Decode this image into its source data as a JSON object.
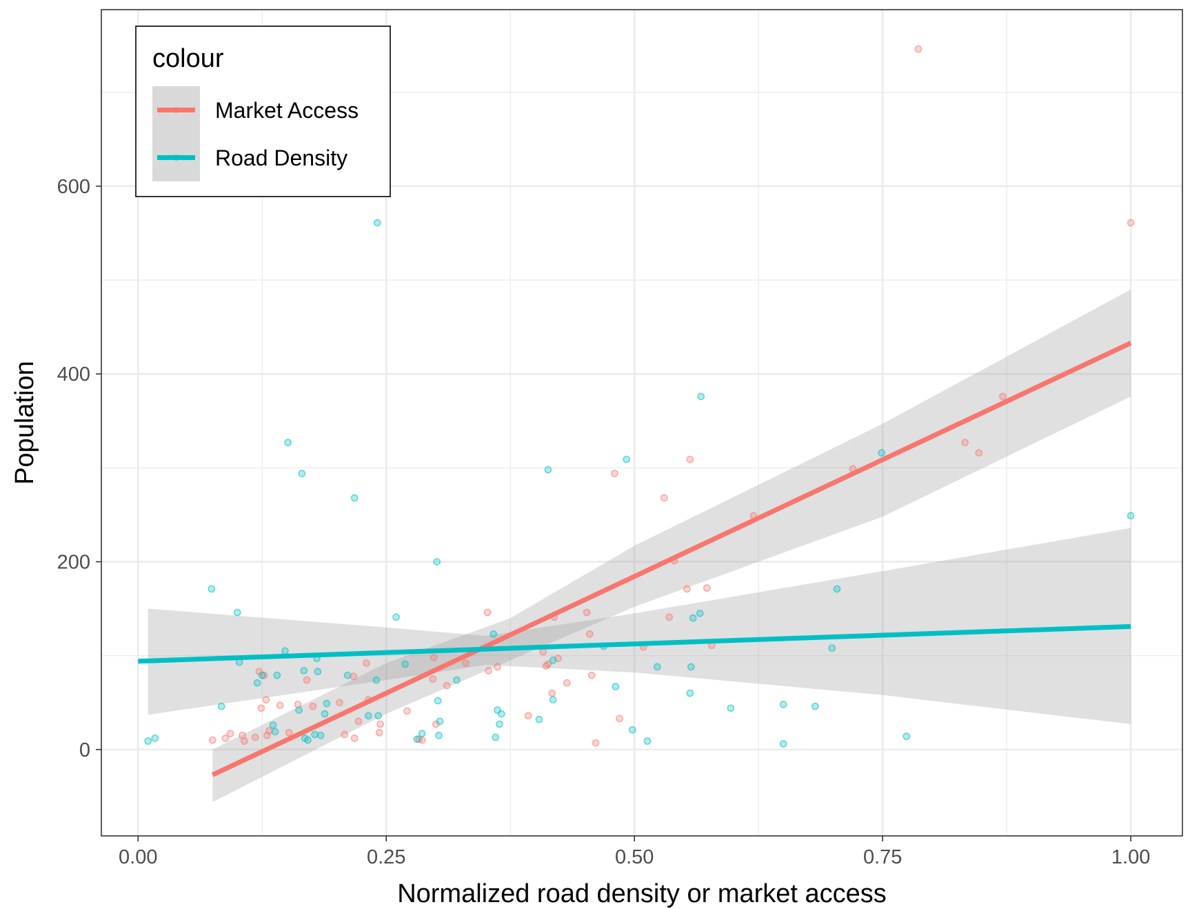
{
  "chart_data": {
    "type": "scatter",
    "title": "",
    "xlabel": "Normalized road density or market access",
    "ylabel": "Population",
    "xlim": [
      -0.037,
      1.052
    ],
    "ylim": [
      -92,
      788
    ],
    "x_ticks": [
      0,
      0.25,
      0.5,
      0.75,
      1
    ],
    "x_tick_labels": [
      "0.00",
      "0.25",
      "0.50",
      "0.75",
      "1.00"
    ],
    "y_ticks": [
      0,
      200,
      400,
      600
    ],
    "y_tick_labels": [
      "0",
      "200",
      "400",
      "600"
    ],
    "grid": true,
    "legend": {
      "title": "colour",
      "position": "top-left"
    },
    "series": [
      {
        "name": "Market Access",
        "color": "#F8766D",
        "points": [
          [
            0.075,
            10
          ],
          [
            0.088,
            12
          ],
          [
            0.093,
            17
          ],
          [
            0.105,
            15
          ],
          [
            0.107,
            9
          ],
          [
            0.118,
            13
          ],
          [
            0.122,
            83
          ],
          [
            0.124,
            44
          ],
          [
            0.127,
            79
          ],
          [
            0.129,
            53
          ],
          [
            0.13,
            15
          ],
          [
            0.132,
            20
          ],
          [
            0.143,
            47
          ],
          [
            0.152,
            18
          ],
          [
            0.161,
            48
          ],
          [
            0.17,
            74
          ],
          [
            0.176,
            46
          ],
          [
            0.203,
            50
          ],
          [
            0.208,
            16
          ],
          [
            0.217,
            78
          ],
          [
            0.218,
            12
          ],
          [
            0.222,
            30
          ],
          [
            0.23,
            92
          ],
          [
            0.232,
            53
          ],
          [
            0.243,
            18
          ],
          [
            0.244,
            27
          ],
          [
            0.271,
            41
          ],
          [
            0.283,
            11
          ],
          [
            0.286,
            10
          ],
          [
            0.297,
            75
          ],
          [
            0.298,
            98
          ],
          [
            0.3,
            27
          ],
          [
            0.311,
            68
          ],
          [
            0.33,
            92
          ],
          [
            0.352,
            146
          ],
          [
            0.353,
            84
          ],
          [
            0.362,
            88
          ],
          [
            0.393,
            36
          ],
          [
            0.408,
            104
          ],
          [
            0.411,
            89
          ],
          [
            0.413,
            91
          ],
          [
            0.417,
            60
          ],
          [
            0.419,
            141
          ],
          [
            0.423,
            97
          ],
          [
            0.432,
            71
          ],
          [
            0.452,
            146
          ],
          [
            0.455,
            123
          ],
          [
            0.457,
            79
          ],
          [
            0.461,
            7
          ],
          [
            0.48,
            294
          ],
          [
            0.485,
            33
          ],
          [
            0.509,
            109
          ],
          [
            0.53,
            268
          ],
          [
            0.535,
            141
          ],
          [
            0.54,
            201
          ],
          [
            0.553,
            171
          ],
          [
            0.556,
            309
          ],
          [
            0.573,
            172
          ],
          [
            0.578,
            111
          ],
          [
            0.62,
            249
          ],
          [
            0.72,
            299
          ],
          [
            0.786,
            746
          ],
          [
            0.833,
            327
          ],
          [
            0.847,
            316
          ],
          [
            0.871,
            376
          ],
          [
            1.0,
            561
          ]
        ],
        "fit_line": [
          [
            0.075,
            -27
          ],
          [
            1.0,
            433
          ]
        ],
        "ci_band": [
          [
            0.075,
            0,
            -56
          ],
          [
            0.25,
            92,
            38
          ],
          [
            0.375,
            140,
            95
          ],
          [
            0.5,
            217,
            152
          ],
          [
            0.75,
            347,
            248
          ],
          [
            1.0,
            490,
            376
          ]
        ]
      },
      {
        "name": "Road Density",
        "color": "#00BFC4",
        "points": [
          [
            0.01,
            9
          ],
          [
            0.017,
            12
          ],
          [
            0.074,
            171
          ],
          [
            0.1,
            146
          ],
          [
            0.102,
            93
          ],
          [
            0.084,
            46
          ],
          [
            0.12,
            71
          ],
          [
            0.125,
            79
          ],
          [
            0.136,
            26
          ],
          [
            0.138,
            19
          ],
          [
            0.14,
            79
          ],
          [
            0.148,
            105
          ],
          [
            0.151,
            327
          ],
          [
            0.162,
            42
          ],
          [
            0.165,
            294
          ],
          [
            0.167,
            84
          ],
          [
            0.168,
            12
          ],
          [
            0.171,
            10
          ],
          [
            0.178,
            16
          ],
          [
            0.18,
            97
          ],
          [
            0.181,
            83
          ],
          [
            0.184,
            15
          ],
          [
            0.188,
            38
          ],
          [
            0.19,
            49
          ],
          [
            0.211,
            79
          ],
          [
            0.218,
            268
          ],
          [
            0.232,
            36
          ],
          [
            0.24,
            74
          ],
          [
            0.241,
            561
          ],
          [
            0.242,
            36
          ],
          [
            0.26,
            141
          ],
          [
            0.269,
            91
          ],
          [
            0.281,
            11
          ],
          [
            0.286,
            17
          ],
          [
            0.301,
            200
          ],
          [
            0.302,
            52
          ],
          [
            0.303,
            15
          ],
          [
            0.304,
            30
          ],
          [
            0.321,
            74
          ],
          [
            0.358,
            123
          ],
          [
            0.36,
            13
          ],
          [
            0.362,
            42
          ],
          [
            0.364,
            27
          ],
          [
            0.366,
            38
          ],
          [
            0.404,
            32
          ],
          [
            0.413,
            298
          ],
          [
            0.418,
            53
          ],
          [
            0.418,
            95
          ],
          [
            0.469,
            110
          ],
          [
            0.481,
            67
          ],
          [
            0.492,
            309
          ],
          [
            0.498,
            21
          ],
          [
            0.513,
            9
          ],
          [
            0.523,
            88
          ],
          [
            0.556,
            60
          ],
          [
            0.557,
            88
          ],
          [
            0.559,
            140
          ],
          [
            0.566,
            145
          ],
          [
            0.567,
            376
          ],
          [
            0.597,
            44
          ],
          [
            0.65,
            48
          ],
          [
            0.65,
            6
          ],
          [
            0.682,
            46
          ],
          [
            0.699,
            108
          ],
          [
            0.704,
            171
          ],
          [
            0.749,
            316
          ],
          [
            0.774,
            14
          ],
          [
            1.0,
            249
          ]
        ],
        "fit_line": [
          [
            0.0,
            94
          ],
          [
            1.0,
            131
          ]
        ],
        "ci_band": [
          [
            0.01,
            150,
            37
          ],
          [
            0.25,
            130,
            74
          ],
          [
            0.35,
            121,
            90
          ],
          [
            0.5,
            145,
            82
          ],
          [
            0.75,
            190,
            58
          ],
          [
            1.0,
            236,
            27
          ]
        ]
      }
    ]
  }
}
